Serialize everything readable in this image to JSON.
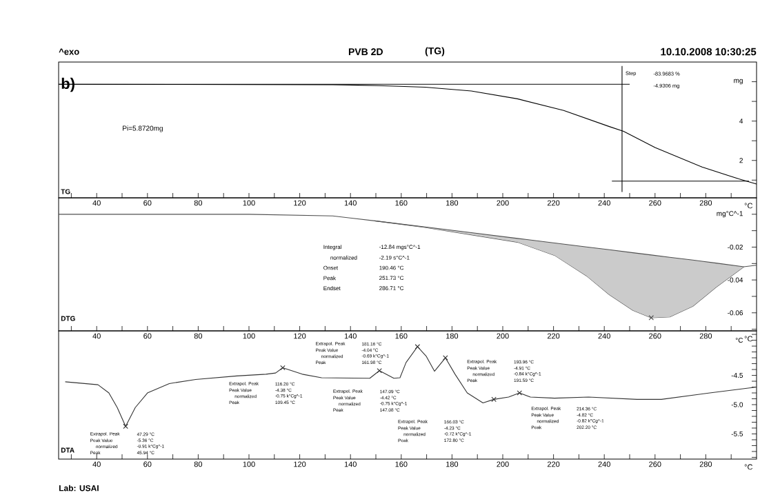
{
  "chart_data": [
    {
      "type": "line",
      "title": "PVB 2D",
      "subtitle": "(TG)",
      "xlabel": "°C",
      "annotations": [
        "^exo",
        "10.10.2008 10:30:25",
        "b)",
        "Pi=5.8720mg",
        "Step",
        "-83.9683 %",
        "-4.9306 mg",
        "TG"
      ],
      "xlim": [
        25,
        300
      ],
      "ylim": [
        0.1,
        7.0
      ],
      "xticks": [
        {
          "value": 30,
          "label": null
        },
        40,
        {
          "value": 50,
          "label": null
        },
        60,
        {
          "value": 70,
          "label": null
        },
        80,
        {
          "value": 90,
          "label": null
        },
        100,
        {
          "value": 110,
          "label": null
        },
        120,
        {
          "value": 130,
          "label": null
        },
        140,
        {
          "value": 150,
          "label": null
        },
        160,
        {
          "value": 170,
          "label": null
        },
        180,
        {
          "value": 190,
          "label": null
        },
        200,
        {
          "value": 210,
          "label": null
        },
        220,
        {
          "value": 230,
          "label": null
        },
        240,
        {
          "value": 250,
          "label": null
        },
        260,
        {
          "value": 270,
          "label": null
        },
        280,
        {
          "value": 290,
          "label": null
        }
      ],
      "yticks": [
        {
          "value": 1,
          "label": null
        },
        2,
        {
          "value": 3,
          "label": null
        },
        4,
        {
          "value": 5,
          "label": null
        },
        {
          "value": 6,
          "label": null
        }
      ],
      "ylabel": "mg",
      "series": [
        {
          "color": "#000000",
          "x": [
            25,
            133,
            151,
            169.5,
            187.6,
            205.8,
            224,
            242,
            247.6,
            260,
            278.5,
            293,
            300
          ],
          "values": [
            5.87,
            5.85,
            5.8,
            5.72,
            5.53,
            5.13,
            4.54,
            3.72,
            3.48,
            2.66,
            1.67,
            1.06,
            0.8
          ]
        },
        {
          "color": "#000000",
          "x": [
            25,
            250
          ],
          "values": [
            5.87,
            5.87
          ]
        },
        {
          "color": "#000000",
          "x": [
            243,
            297
          ],
          "values": [
            0.95,
            0.95
          ]
        },
        {
          "color": "#000000",
          "x": [
            247,
            247
          ],
          "values": [
            0.4,
            6.8
          ]
        }
      ]
    },
    {
      "type": "line",
      "xlabel": "°C",
      "annotations": [
        "DTG",
        "Integral",
        "-12.84 mgs°C^-1",
        "normalized",
        "-2.19 s°C^-1",
        "Onset",
        "190.46 °C",
        "Peak",
        "251.73 °C",
        "Endset",
        "286.71 °C"
      ],
      "xlim": [
        25,
        300
      ],
      "ylim": [
        -0.071,
        0.01
      ],
      "xticks": [
        {
          "value": 30,
          "label": null
        },
        40,
        {
          "value": 50,
          "label": null
        },
        60,
        {
          "value": 70,
          "label": null
        },
        80,
        {
          "value": 90,
          "label": null
        },
        100,
        {
          "value": 110,
          "label": null
        },
        120,
        {
          "value": 130,
          "label": null
        },
        140,
        {
          "value": 150,
          "label": null
        },
        160,
        {
          "value": 170,
          "label": null
        },
        180,
        {
          "value": 190,
          "label": null
        },
        200,
        {
          "value": 210,
          "label": null
        },
        220,
        {
          "value": 230,
          "label": null
        },
        240,
        {
          "value": 250,
          "label": null
        },
        260,
        {
          "value": 270,
          "label": null
        },
        280,
        {
          "value": 290,
          "label": null
        }
      ],
      "ylabel": "mg°C^-1",
      "yticks": [
        {
          "value": 0,
          "label": null
        },
        {
          "value": -0.01,
          "label": null
        },
        -0.02,
        {
          "value": -0.03,
          "label": null
        },
        -0.04,
        {
          "value": -0.05,
          "label": null
        },
        -0.06,
        {
          "value": -0.07,
          "label": null
        }
      ],
      "series": [
        {
          "color": "#505050",
          "x": [
            25,
            60,
            100,
            133,
            149.5,
            169.5,
            187.6,
            205.8,
            220.4,
            233,
            242,
            251.3,
            258.5,
            265.8,
            274.9,
            284,
            295,
            300
          ],
          "values": [
            0,
            0,
            0,
            -0.001,
            -0.004,
            -0.008,
            -0.0125,
            -0.017,
            -0.025,
            -0.0375,
            -0.049,
            -0.0585,
            -0.063,
            -0.0625,
            -0.056,
            -0.0445,
            -0.032,
            -0.031
          ]
        },
        {
          "color": "#505050",
          "x": [
            149.5,
            169.5,
            187.6,
            205.8,
            220.4,
            233,
            242,
            251.3,
            258.5,
            265.8,
            274.9,
            284,
            295
          ],
          "values": [
            -0.004,
            -0.0077,
            -0.0112,
            -0.0147,
            -0.0175,
            -0.0199,
            -0.0216,
            -0.0234,
            -0.0248,
            -0.0262,
            -0.0279,
            -0.0297,
            -0.032
          ],
          "upper": [
            -0.004,
            -0.0077,
            -0.0112,
            -0.0147,
            -0.0175,
            -0.0199,
            -0.0216,
            -0.0234,
            -0.0248,
            -0.0262,
            -0.0279,
            -0.0297,
            -0.032
          ],
          "lower": [
            -0.004,
            -0.008,
            -0.0125,
            -0.017,
            -0.025,
            -0.0375,
            -0.049,
            -0.0585,
            -0.063,
            -0.0625,
            -0.056,
            -0.0445,
            -0.032
          ]
        },
        {
          "type": "scatter",
          "marker": "cross",
          "color": "#505050",
          "x": [
            258.5
          ],
          "values": [
            -0.063
          ]
        }
      ]
    },
    {
      "type": "line",
      "xlabel": "°C",
      "annotations": [
        "DTA",
        "Lab: USAI",
        "Extrapol. Peak",
        "47.29 °C",
        "Peak Value",
        "-5.36 °C",
        "normalized",
        "-0.91 k°Cg^-1",
        "Peak",
        "45.94 °C",
        "Extrapol. Peak",
        "116.20 °C",
        "Peak Value",
        "-4.38 °C",
        "normalized",
        "-0.75 k°Cg^-1",
        "Peak",
        "109.45 °C",
        "Extrapol. Peak",
        "181.16 °C",
        "Peak Value",
        "-4.04 °C",
        "normalized",
        "-0.69 k°Cg^-1",
        "Peak",
        "161.98 °C",
        "Extrapol. Peak",
        "147.09 °C",
        "Peak Value",
        "-4.42 °C",
        "normalized",
        "-0.75 k°Cg^-1",
        "Peak",
        "147.08 °C",
        "Extrapol. Peak",
        "166.03 °C",
        "Peak Value",
        "-4.23 °C",
        "normalized",
        "-0.72 k°Cg^-1",
        "Peak",
        "172.80 °C",
        "Extrapol. Peak",
        "193.96 °C",
        "Peak Value",
        "-4.91 °C",
        "normalized",
        "-0.84 k°Cg^-1",
        "Peak",
        "191.59 °C",
        "Extrapol. Peak",
        "214.36 °C",
        "Peak Value",
        "-4.82 °C",
        "normalized",
        "-0.82 k°Cg^-1",
        "Peak",
        "202.20 °C"
      ],
      "ylabel": "°C",
      "xlim": [
        25,
        300
      ],
      "ylim": [
        -5.93,
        -3.74
      ],
      "xticks": [
        {
          "value": 30,
          "label": null
        },
        40,
        {
          "value": 50,
          "label": null
        },
        60,
        {
          "value": 70,
          "label": null
        },
        80,
        {
          "value": 90,
          "label": null
        },
        100,
        {
          "value": 110,
          "label": null
        },
        120,
        {
          "value": 130,
          "label": null
        },
        140,
        {
          "value": 150,
          "label": null
        },
        160,
        {
          "value": 170,
          "label": null
        },
        180,
        {
          "value": 190,
          "label": null
        },
        200,
        {
          "value": 210,
          "label": null
        },
        220,
        {
          "value": 230,
          "label": null
        },
        240,
        {
          "value": 250,
          "label": null
        },
        260,
        {
          "value": 270,
          "label": null
        },
        280,
        {
          "value": 290,
          "label": null
        }
      ],
      "yticks": [
        {
          "value": -3.8,
          "label": null
        },
        {
          "value": -3.9,
          "label": null
        },
        {
          "value": -4.0,
          "label": null
        },
        {
          "value": -4.1,
          "label": null
        },
        {
          "value": -4.2,
          "label": null
        },
        {
          "value": -4.3,
          "label": null
        },
        {
          "value": -4.4,
          "label": null
        },
        -4.5,
        {
          "value": -4.6,
          "label": null
        },
        {
          "value": -4.7,
          "label": null
        },
        {
          "value": -4.8,
          "label": null
        },
        {
          "value": -4.9,
          "label": null
        },
        {
          "value": -5.0,
          "label": "-5.0"
        },
        {
          "value": -5.1,
          "label": null
        },
        {
          "value": -5.2,
          "label": null
        },
        {
          "value": -5.3,
          "label": null
        },
        {
          "value": -5.4,
          "label": null
        },
        -5.5,
        {
          "value": -5.6,
          "label": null
        },
        {
          "value": -5.7,
          "label": null
        },
        {
          "value": -5.8,
          "label": null
        },
        {
          "value": -5.9,
          "label": null
        }
      ],
      "series": [
        {
          "color": "#333333",
          "x": [
            27.6,
            40.5,
            44.8,
            48.1,
            51.4,
            55.2,
            60,
            68.6,
            79,
            95.2,
            106.7,
            110.5,
            113.3,
            121,
            128.6,
            147.6,
            151.4,
            157.1,
            159.5,
            161.9,
            166.4,
            169.8,
            173.1,
            177.4,
            181.2,
            186,
            192.2,
            196.5,
            202.3,
            206.6,
            210.9,
            220.4,
            233.8,
            252.9,
            262.5,
            281.6,
            300
          ],
          "values": [
            -4.61,
            -4.66,
            -4.8,
            -5.05,
            -5.37,
            -5.05,
            -4.8,
            -4.64,
            -4.57,
            -4.51,
            -4.48,
            -4.46,
            -4.37,
            -4.48,
            -4.54,
            -4.55,
            -4.42,
            -4.55,
            -4.54,
            -4.28,
            -4.01,
            -4.17,
            -4.43,
            -4.2,
            -4.48,
            -4.8,
            -4.97,
            -4.91,
            -4.87,
            -4.8,
            -4.87,
            -4.89,
            -4.87,
            -4.91,
            -4.91,
            -4.8,
            -4.7
          ]
        },
        {
          "type": "scatter",
          "marker": "cross",
          "color": "#333333",
          "x": [
            51.4,
            113.3,
            151.4,
            166.4,
            177.4,
            196.5,
            206.6
          ],
          "values": [
            -5.37,
            -4.37,
            -4.42,
            -4.01,
            -4.2,
            -4.91,
            -4.8
          ]
        }
      ]
    }
  ]
}
